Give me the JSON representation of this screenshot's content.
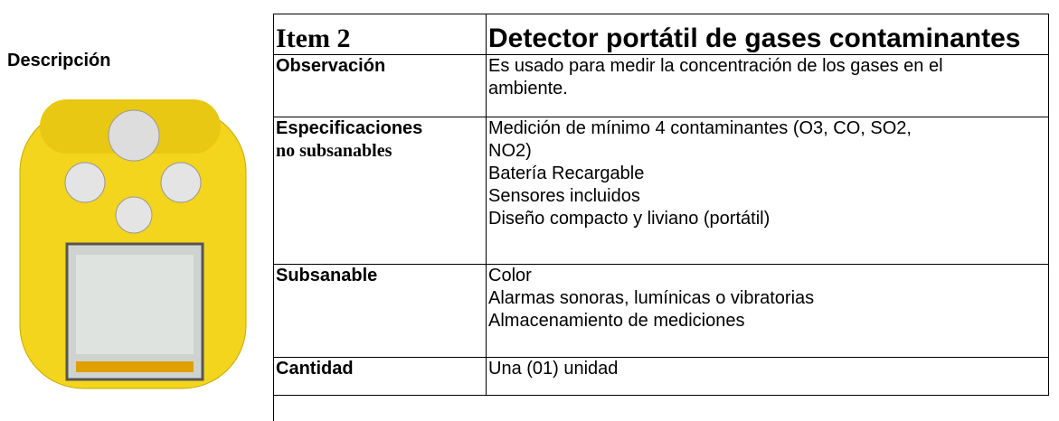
{
  "description_label": "Descripción",
  "header": {
    "item": "Item 2",
    "title": "Detector portátil de gases contaminantes"
  },
  "rows": [
    {
      "label": [
        "Observación"
      ],
      "lines": [
        "Es usado para medir la concentración de los gases en el",
        "ambiente."
      ]
    },
    {
      "label": [
        "Especificaciones",
        "no subsanables"
      ],
      "lines": [
        "Medición de mínimo 4 contaminantes (O3, CO, SO2,",
        "NO2)",
        "Batería Recargable",
        "Sensores incluidos",
        "Diseño compacto y liviano (portátil)"
      ]
    },
    {
      "label": [
        "Subsanable"
      ],
      "lines": [
        "Color",
        "Alarmas sonoras, lumínicas o vibratorias",
        "Almacenamiento de mediciones"
      ]
    },
    {
      "label": [
        "Cantidad"
      ],
      "lines": [
        "Una (01) unidad"
      ]
    }
  ]
}
